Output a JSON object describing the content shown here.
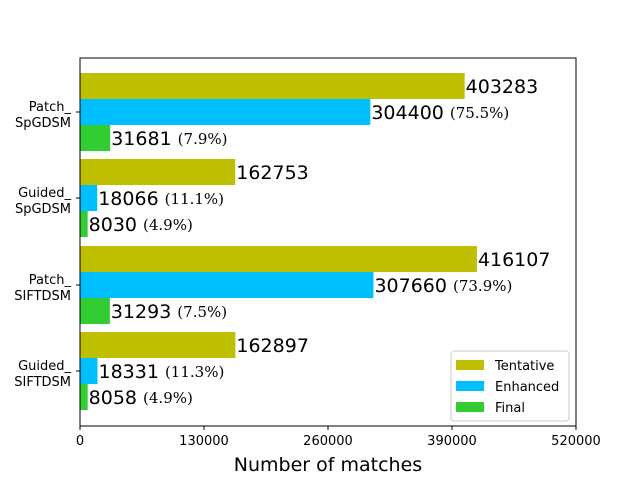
{
  "chart_data": {
    "type": "bar",
    "orientation": "horizontal",
    "title": "",
    "xlabel": "Number of matches",
    "ylabel": "",
    "xlim": [
      0,
      520000
    ],
    "xticks": [
      0,
      130000,
      260000,
      390000,
      520000
    ],
    "xtick_labels": [
      "0",
      "130000",
      "260000",
      "390000",
      "520000"
    ],
    "grid": false,
    "legend_position": "lower-right",
    "categories": [
      [
        "Patch_",
        "SpGDSM"
      ],
      [
        "Guided_",
        "SpGDSM"
      ],
      [
        "Patch_",
        "SIFTDSM"
      ],
      [
        "Guided_",
        "SIFTDSM"
      ]
    ],
    "series": [
      {
        "name": "Tentative",
        "color": "#bdbf00",
        "values": [
          403283,
          162753,
          416107,
          162897
        ],
        "labels": [
          "403283",
          "162753",
          "416107",
          "162897"
        ],
        "percent_labels": [
          "",
          "",
          "",
          ""
        ]
      },
      {
        "name": "Enhanced",
        "color": "#00bfff",
        "values": [
          304400,
          18066,
          307660,
          18331
        ],
        "labels": [
          "304400",
          "18066",
          "307660",
          "18331"
        ],
        "percent_labels": [
          "(75.5%)",
          "(11.1%)",
          "(73.9%)",
          "(11.3%)"
        ]
      },
      {
        "name": "Final",
        "color": "#32cd32",
        "values": [
          31681,
          8030,
          31293,
          8058
        ],
        "labels": [
          "31681",
          "8030",
          "31293",
          "8058"
        ],
        "percent_labels": [
          "(7.9%)",
          "(4.9%)",
          "(7.5%)",
          "(4.9%)"
        ]
      }
    ]
  }
}
